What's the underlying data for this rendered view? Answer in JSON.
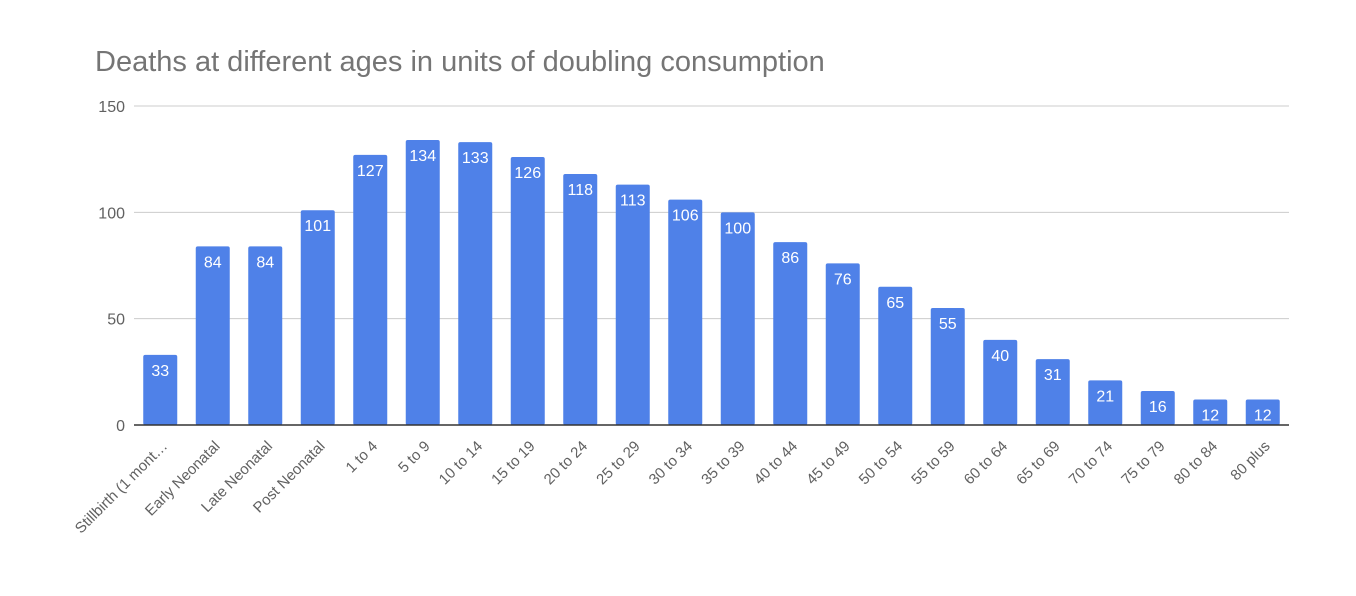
{
  "chart_data": {
    "type": "bar",
    "title": "Deaths at different ages in units of doubling consumption",
    "xlabel": "",
    "ylabel": "",
    "ylim": [
      0,
      150
    ],
    "yticks": [
      0,
      50,
      100,
      150
    ],
    "grid": true,
    "legend": "none",
    "bar_color": "#4f81e8",
    "categories": [
      "Stillbirth (1 mont…",
      "Early Neonatal",
      "Late Neonatal",
      "Post Neonatal",
      "1 to 4",
      "5 to 9",
      "10 to 14",
      "15 to 19",
      "20 to 24",
      "25 to 29",
      "30 to 34",
      "35 to 39",
      "40 to 44",
      "45 to 49",
      "50 to 54",
      "55 to 59",
      "60 to 64",
      "65 to 69",
      "70 to 74",
      "75 to 79",
      "80 to 84",
      "80 plus"
    ],
    "values": [
      33,
      84,
      84,
      101,
      127,
      134,
      133,
      126,
      118,
      113,
      106,
      100,
      86,
      76,
      65,
      55,
      40,
      31,
      21,
      16,
      12,
      12
    ],
    "data_labels": [
      "33",
      "84",
      "84",
      "101",
      "127",
      "134",
      "133",
      "126",
      "118",
      "113",
      "106",
      "100",
      "86",
      "76",
      "65",
      "55",
      "40",
      "31",
      "21",
      "16",
      "12",
      "12"
    ]
  }
}
